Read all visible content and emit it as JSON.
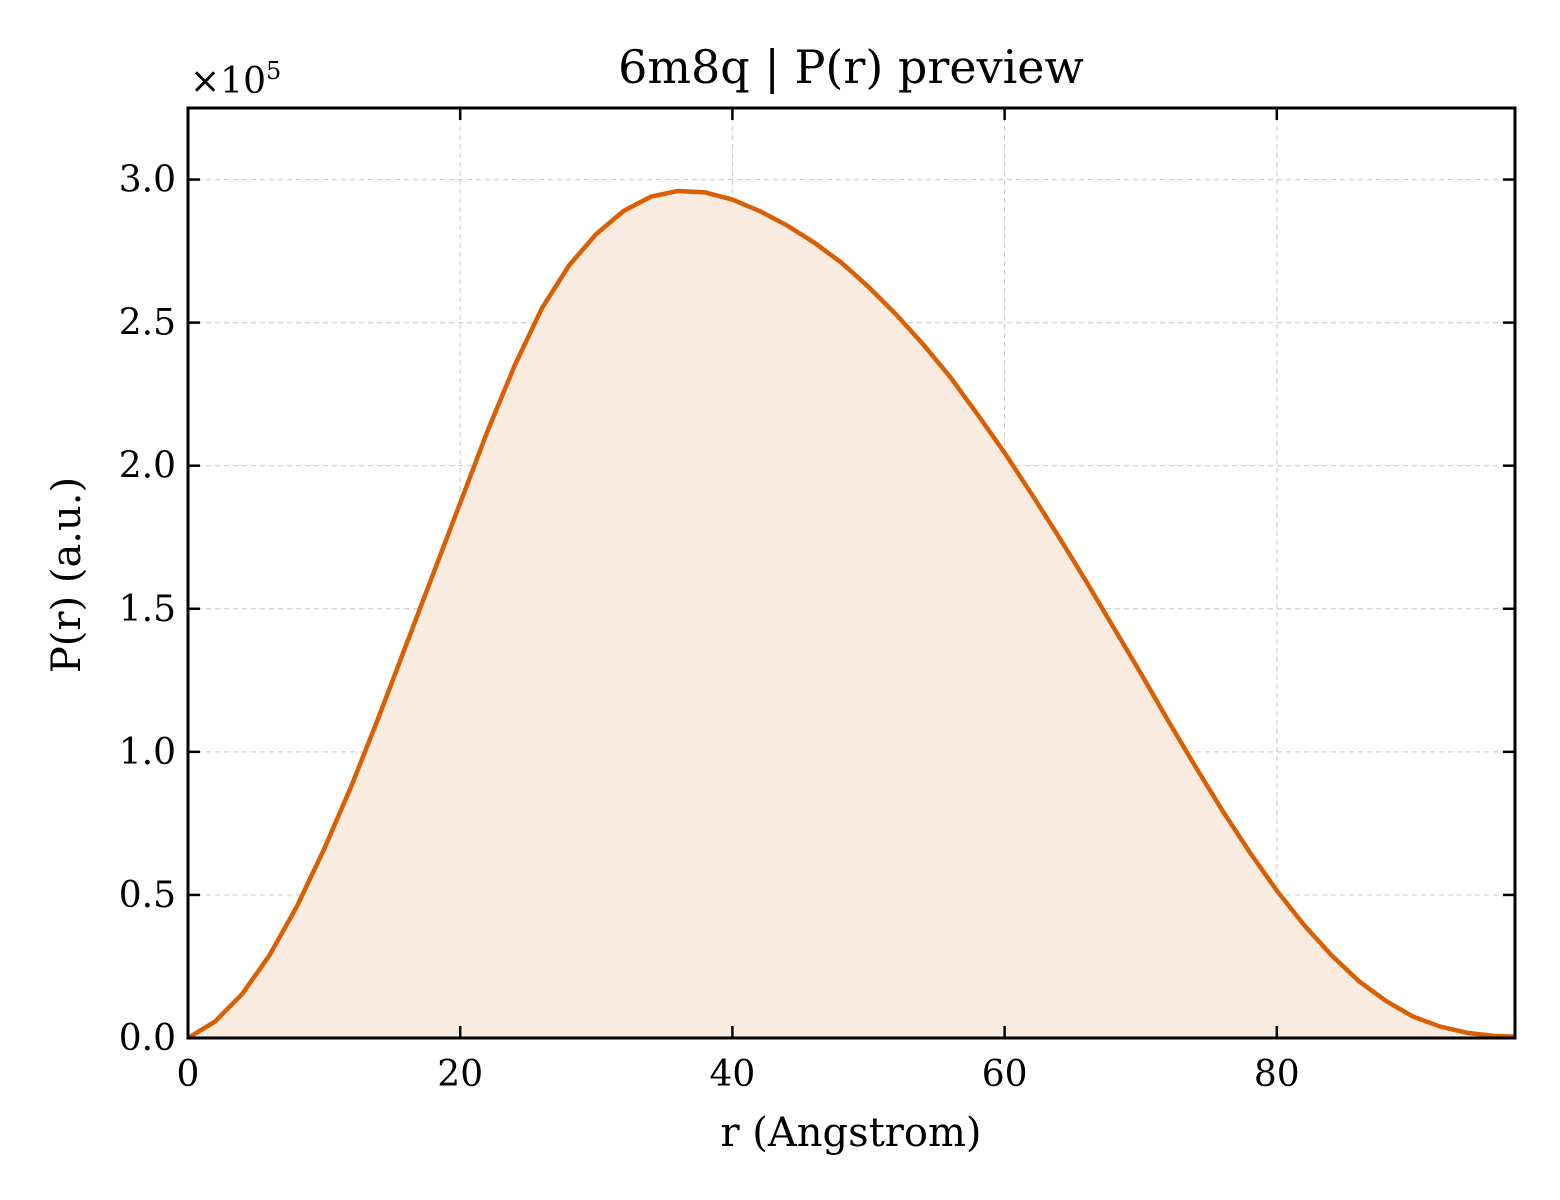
{
  "chart_data": {
    "type": "area",
    "title": "6m8q | P(r) preview",
    "xlabel": "r (Angstrom)",
    "ylabel": "P(r) (a.u.)",
    "y_offset_label": {
      "base": "×10",
      "exponent": "5"
    },
    "y_scale_factor": 100000,
    "xlim": [
      0,
      97.5
    ],
    "ylim": [
      0,
      325000
    ],
    "xticks": [
      0,
      20,
      40,
      60,
      80
    ],
    "yticks": [
      0,
      50000,
      100000,
      150000,
      200000,
      250000,
      300000
    ],
    "ytick_labels": [
      "0.0",
      "0.5",
      "1.0",
      "1.5",
      "2.0",
      "2.5",
      "3.0"
    ],
    "grid": true,
    "line_color": "#d95f02",
    "fill_color": "#f9ebe0",
    "x": [
      0,
      2,
      4,
      6,
      8,
      10,
      12,
      14,
      16,
      18,
      20,
      22,
      24,
      26,
      28,
      30,
      32,
      34,
      36,
      38,
      40,
      42,
      44,
      46,
      48,
      50,
      52,
      54,
      56,
      58,
      60,
      62,
      64,
      66,
      68,
      70,
      72,
      74,
      76,
      78,
      80,
      82,
      84,
      86,
      88,
      90,
      92,
      94,
      96,
      97.5
    ],
    "y": [
      0,
      5800,
      15500,
      29000,
      46000,
      66000,
      88000,
      112000,
      137000,
      162000,
      187000,
      212000,
      235000,
      255000,
      270000,
      281000,
      289000,
      294000,
      296000,
      295500,
      293000,
      289000,
      284000,
      278000,
      271000,
      262500,
      253000,
      242500,
      231000,
      218000,
      204500,
      190000,
      175000,
      159500,
      143500,
      127500,
      111000,
      95000,
      79500,
      65000,
      51500,
      39500,
      29000,
      20000,
      13000,
      7500,
      4000,
      1800,
      700,
      500
    ]
  }
}
